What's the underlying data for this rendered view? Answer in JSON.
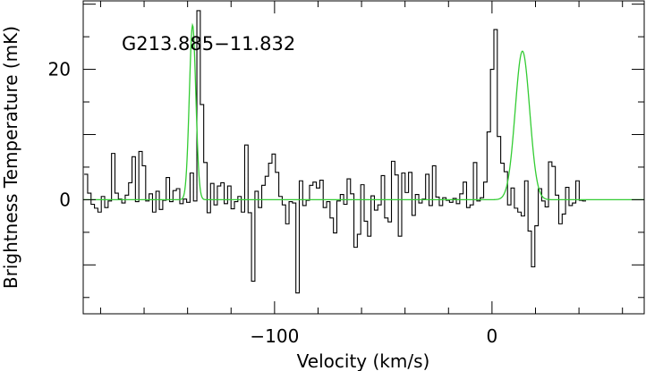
{
  "chart_data": {
    "type": "line",
    "annotation": "G213.885−11.832",
    "xlabel": "Velocity (km/s)",
    "ylabel": "Brightness Temperature (mK)",
    "xlim": [
      -188,
      70
    ],
    "ylim": [
      -17.5,
      30.5
    ],
    "xticks_labeled": [
      -100,
      0
    ],
    "xtick_labels": [
      "−100",
      "0"
    ],
    "yticks_labeled": [
      0,
      20
    ],
    "ytick_labels": [
      "0",
      "20"
    ],
    "grid": false,
    "colors": {
      "spectrum": "#000000",
      "fit": "#33cc33",
      "axes": "#000000"
    },
    "series": [
      {
        "style": "step",
        "x0": -186.75,
        "dx": 1.57,
        "y": [
          3.9,
          1.0,
          -0.7,
          -1.3,
          -1.9,
          0.5,
          -1.2,
          -0.2,
          7.1,
          1.0,
          0.1,
          -0.5,
          0.7,
          2.6,
          6.6,
          -0.3,
          7.4,
          5.2,
          -0.2,
          0.9,
          -1.9,
          1.3,
          -1.5,
          -0.1,
          3.4,
          -0.3,
          1.4,
          1.7,
          -0.6,
          0.1,
          -0.4,
          4.1,
          -0.2,
          29.0,
          14.6,
          5.7,
          -2.0,
          2.5,
          -0.8,
          2.1,
          2.6,
          -0.6,
          2.1,
          -1.4,
          -0.3,
          0.5,
          -1.9,
          8.4,
          -2.0,
          -12.5,
          1.3,
          -1.2,
          2.2,
          3.6,
          5.6,
          7.0,
          4.2,
          0.5,
          -0.8,
          -3.7,
          -0.3,
          -0.5,
          -14.3,
          2.9,
          -0.9,
          -0.1,
          2.2,
          2.7,
          1.8,
          3.0,
          -1.2,
          -0.3,
          -2.8,
          -5.1,
          -0.2,
          0.8,
          -0.7,
          3.2,
          0.9,
          -7.3,
          -5.3,
          2.3,
          -3.3,
          -5.6,
          0.6,
          -1.6,
          -0.8,
          3.7,
          -2.8,
          -3.4,
          5.9,
          3.8,
          -5.6,
          4.1,
          1.1,
          4.2,
          -2.4,
          0.8,
          -0.5,
          0.1,
          3.9,
          -0.9,
          5.2,
          0.4,
          -0.9,
          0.3,
          -0.1,
          -0.4,
          0.2,
          -0.6,
          0.9,
          2.7,
          -1.2,
          -0.8,
          5.7,
          -0.2,
          0.3,
          2.7,
          10.4,
          20.0,
          26.1,
          9.7,
          5.6,
          4.3,
          -0.8,
          1.8,
          -1.3,
          -1.9,
          -2.5,
          2.9,
          -4.8,
          -10.3,
          -4.0,
          1.7,
          -0.2,
          -1.1,
          5.8,
          5.1,
          0.7,
          -3.7,
          -2.2,
          1.9,
          -0.9,
          -0.5,
          2.9,
          -0.1,
          -0.2
        ]
      },
      {
        "style": "gaussian-fit",
        "components": [
          {
            "center": -137.7,
            "amplitude": 26.8,
            "fwhm": 3.5
          },
          {
            "center": 14.0,
            "amplitude": 22.8,
            "fwhm": 7.8
          }
        ]
      }
    ]
  }
}
